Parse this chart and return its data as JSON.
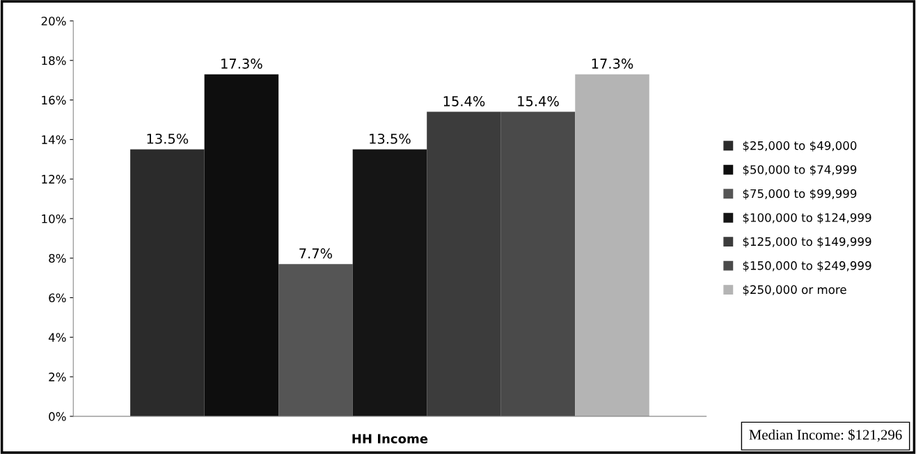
{
  "chart_data": {
    "type": "bar",
    "categories": [
      "HH Income"
    ],
    "series": [
      {
        "name": "$25,000 to $49,000",
        "color": "#2b2b2b",
        "values": [
          13.5
        ],
        "value_labels": [
          "13.5%"
        ]
      },
      {
        "name": "$50,000 to $74,999",
        "color": "#0e0e0e",
        "values": [
          17.3
        ],
        "value_labels": [
          "17.3%"
        ]
      },
      {
        "name": "$75,000 to $99,999",
        "color": "#555555",
        "values": [
          7.7
        ],
        "value_labels": [
          "7.7%"
        ]
      },
      {
        "name": "$100,000 to $124,999",
        "color": "#151515",
        "values": [
          13.5
        ],
        "value_labels": [
          "13.5%"
        ]
      },
      {
        "name": "$125,000 to $149,999",
        "color": "#3c3c3c",
        "values": [
          15.4
        ],
        "value_labels": [
          "15.4%"
        ]
      },
      {
        "name": "$150,000 to $249,999",
        "color": "#4a4a4a",
        "values": [
          15.4
        ],
        "value_labels": [
          "15.4%"
        ]
      },
      {
        "name": "$250,000 or more",
        "color": "#b4b4b4",
        "values": [
          17.3
        ],
        "value_labels": [
          "17.3%"
        ]
      }
    ],
    "ylim": [
      0,
      20
    ],
    "yticks": [
      {
        "value": 0,
        "label": "0%"
      },
      {
        "value": 2,
        "label": "2%"
      },
      {
        "value": 4,
        "label": "4%"
      },
      {
        "value": 6,
        "label": "6%"
      },
      {
        "value": 8,
        "label": "8%"
      },
      {
        "value": 10,
        "label": "10%"
      },
      {
        "value": 12,
        "label": "12%"
      },
      {
        "value": 14,
        "label": "14%"
      },
      {
        "value": 16,
        "label": "16%"
      },
      {
        "value": 18,
        "label": "18%"
      },
      {
        "value": 20,
        "label": "20%"
      }
    ],
    "grid": false,
    "legend": "right",
    "annotations": [
      "Median Income: $121,296"
    ]
  }
}
